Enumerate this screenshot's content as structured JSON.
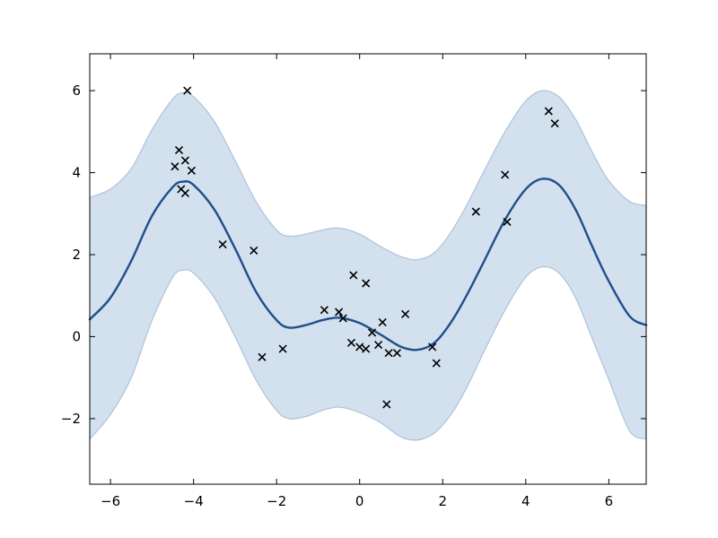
{
  "figure": {
    "background": "#ffffff",
    "frame_color": "#000000",
    "tick_color": "#000000",
    "tick_label_color": "#000000"
  },
  "chart_data": {
    "type": "line",
    "title": "",
    "xlabel": "",
    "ylabel": "",
    "grid": false,
    "legend_position": "none",
    "xlim": [
      -6.5,
      6.9
    ],
    "ylim": [
      -3.6,
      6.9
    ],
    "x_ticks": [
      -6,
      -4,
      -2,
      0,
      2,
      4,
      6
    ],
    "y_ticks": [
      -2,
      0,
      2,
      4,
      6
    ],
    "series": [
      {
        "name": "confidence-band",
        "type": "band",
        "fill_color": "#d3e0ed",
        "edge_color": "#aec3d9",
        "x": [
          -6.5,
          -6.0,
          -5.5,
          -5.0,
          -4.5,
          -4.25,
          -4.0,
          -3.5,
          -3.0,
          -2.5,
          -2.0,
          -1.7,
          -1.3,
          -0.9,
          -0.5,
          0.0,
          0.5,
          1.0,
          1.4,
          1.8,
          2.2,
          2.6,
          3.0,
          3.5,
          4.0,
          4.4,
          4.8,
          5.2,
          5.6,
          6.0,
          6.5,
          6.9
        ],
        "upper": [
          3.4,
          3.6,
          4.1,
          5.05,
          5.8,
          5.95,
          5.85,
          5.25,
          4.3,
          3.3,
          2.6,
          2.45,
          2.5,
          2.6,
          2.65,
          2.5,
          2.2,
          1.95,
          1.88,
          2.05,
          2.55,
          3.25,
          4.05,
          5.0,
          5.75,
          6.0,
          5.85,
          5.3,
          4.5,
          3.8,
          3.3,
          3.2
        ],
        "lower": [
          -2.5,
          -1.9,
          -1.0,
          0.4,
          1.45,
          1.62,
          1.55,
          0.95,
          0.0,
          -1.05,
          -1.8,
          -2.0,
          -1.95,
          -1.8,
          -1.72,
          -1.85,
          -2.1,
          -2.45,
          -2.52,
          -2.35,
          -1.9,
          -1.2,
          -0.35,
          0.65,
          1.45,
          1.7,
          1.55,
          0.95,
          -0.05,
          -1.05,
          -2.3,
          -2.5
        ]
      },
      {
        "name": "gp-mean-line",
        "type": "line",
        "color": "#1f4e8c",
        "width": 2.4,
        "x": [
          -6.5,
          -6.0,
          -5.5,
          -5.0,
          -4.5,
          -4.25,
          -4.0,
          -3.5,
          -3.0,
          -2.5,
          -2.0,
          -1.7,
          -1.3,
          -0.9,
          -0.5,
          0.0,
          0.5,
          1.0,
          1.4,
          1.8,
          2.2,
          2.6,
          3.0,
          3.5,
          4.0,
          4.4,
          4.8,
          5.2,
          5.6,
          6.0,
          6.5,
          6.9
        ],
        "y": [
          0.42,
          0.95,
          1.85,
          2.95,
          3.65,
          3.78,
          3.7,
          3.1,
          2.15,
          1.1,
          0.4,
          0.22,
          0.28,
          0.4,
          0.46,
          0.33,
          0.05,
          -0.25,
          -0.32,
          -0.15,
          0.35,
          1.05,
          1.85,
          2.85,
          3.6,
          3.85,
          3.7,
          3.1,
          2.2,
          1.35,
          0.5,
          0.28
        ]
      },
      {
        "name": "observations",
        "type": "scatter",
        "marker": "x",
        "color": "#000000",
        "points": [
          [
            -4.15,
            6.0
          ],
          [
            -4.35,
            4.55
          ],
          [
            -4.2,
            4.3
          ],
          [
            -4.45,
            4.15
          ],
          [
            -4.05,
            4.05
          ],
          [
            -4.3,
            3.6
          ],
          [
            -4.2,
            3.5
          ],
          [
            -3.3,
            2.25
          ],
          [
            -2.55,
            2.1
          ],
          [
            -2.35,
            -0.5
          ],
          [
            -1.85,
            -0.3
          ],
          [
            -0.85,
            0.65
          ],
          [
            -0.5,
            0.6
          ],
          [
            -0.4,
            0.45
          ],
          [
            -0.15,
            1.5
          ],
          [
            0.15,
            1.3
          ],
          [
            -0.2,
            -0.15
          ],
          [
            0.0,
            -0.25
          ],
          [
            0.15,
            -0.3
          ],
          [
            0.3,
            0.1
          ],
          [
            0.45,
            -0.2
          ],
          [
            0.55,
            0.35
          ],
          [
            0.7,
            -0.4
          ],
          [
            0.9,
            -0.4
          ],
          [
            1.1,
            0.55
          ],
          [
            0.65,
            -1.65
          ],
          [
            1.75,
            -0.25
          ],
          [
            1.85,
            -0.65
          ],
          [
            2.8,
            3.05
          ],
          [
            3.55,
            2.8
          ],
          [
            3.5,
            3.95
          ],
          [
            4.55,
            5.5
          ],
          [
            4.7,
            5.2
          ]
        ]
      }
    ]
  }
}
